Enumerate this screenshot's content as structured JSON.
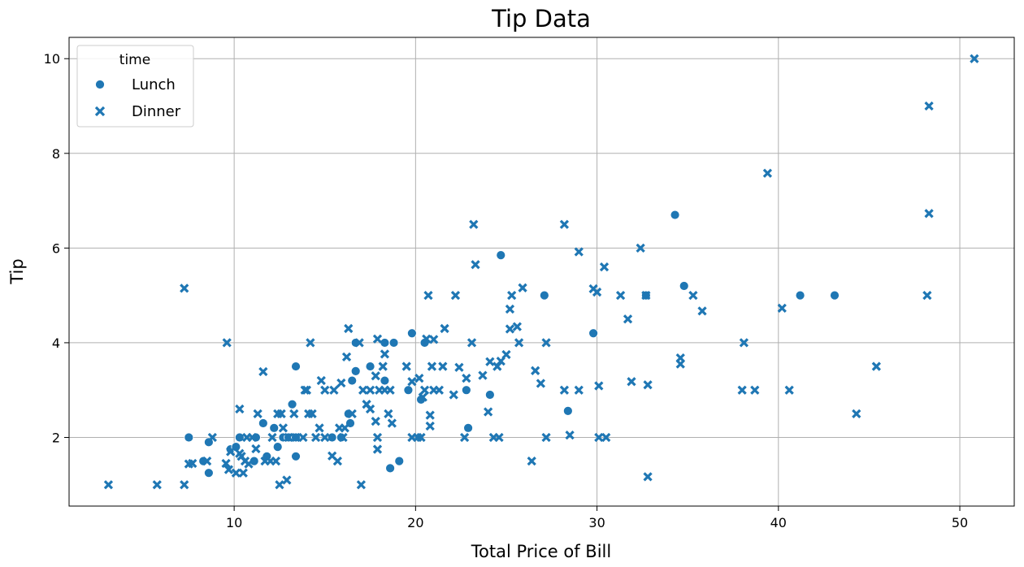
{
  "chart_data": {
    "type": "scatter",
    "title": "Tip Data",
    "xlabel": "Total Price of Bill",
    "ylabel": "Tip",
    "xlim": [
      0.9,
      53.0
    ],
    "ylim": [
      0.55,
      10.45
    ],
    "xticks": [
      10,
      20,
      30,
      40,
      50
    ],
    "yticks": [
      2,
      4,
      6,
      8,
      10
    ],
    "grid": true,
    "legend": {
      "title": "time",
      "placement": "top-left"
    },
    "color": "#1f77b4",
    "series": [
      {
        "name": "Lunch",
        "marker": "circle",
        "points": [
          [
            7.5,
            2.0
          ],
          [
            8.3,
            1.5
          ],
          [
            8.6,
            1.25
          ],
          [
            8.6,
            1.9
          ],
          [
            9.8,
            1.75
          ],
          [
            10.1,
            1.8
          ],
          [
            10.3,
            2.0
          ],
          [
            11.1,
            1.5
          ],
          [
            11.2,
            2.0
          ],
          [
            11.6,
            2.3
          ],
          [
            11.8,
            1.6
          ],
          [
            12.2,
            2.2
          ],
          [
            12.4,
            1.8
          ],
          [
            12.7,
            2.0
          ],
          [
            13.0,
            2.0
          ],
          [
            13.2,
            2.7
          ],
          [
            13.4,
            1.6
          ],
          [
            13.4,
            2.0
          ],
          [
            13.4,
            3.5
          ],
          [
            15.4,
            2.0
          ],
          [
            15.9,
            2.0
          ],
          [
            16.3,
            2.5
          ],
          [
            16.4,
            2.3
          ],
          [
            16.5,
            3.2
          ],
          [
            16.7,
            3.4
          ],
          [
            16.7,
            4.0
          ],
          [
            17.5,
            3.5
          ],
          [
            18.3,
            3.2
          ],
          [
            18.3,
            4.0
          ],
          [
            18.6,
            1.35
          ],
          [
            18.8,
            4.0
          ],
          [
            19.1,
            1.5
          ],
          [
            19.6,
            3.0
          ],
          [
            19.8,
            4.2
          ],
          [
            20.3,
            2.8
          ],
          [
            20.5,
            4.0
          ],
          [
            22.8,
            3.0
          ],
          [
            22.9,
            2.2
          ],
          [
            24.1,
            2.9
          ],
          [
            24.7,
            5.85
          ],
          [
            27.1,
            5.0
          ],
          [
            28.4,
            2.56
          ],
          [
            29.8,
            4.2
          ],
          [
            32.7,
            5.0
          ],
          [
            34.3,
            6.7
          ],
          [
            34.8,
            5.2
          ],
          [
            41.2,
            5.0
          ],
          [
            43.1,
            5.0
          ]
        ]
      },
      {
        "name": "Dinner",
        "marker": "x",
        "points": [
          [
            3.07,
            1.0
          ],
          [
            5.75,
            1.0
          ],
          [
            7.25,
            1.0
          ],
          [
            7.25,
            5.15
          ],
          [
            7.5,
            1.44
          ],
          [
            7.7,
            1.45
          ],
          [
            8.5,
            1.5
          ],
          [
            8.8,
            2.0
          ],
          [
            9.55,
            1.45
          ],
          [
            9.6,
            4.0
          ],
          [
            9.7,
            1.32
          ],
          [
            9.8,
            1.7
          ],
          [
            10.1,
            1.25
          ],
          [
            10.3,
            1.66
          ],
          [
            10.3,
            2.6
          ],
          [
            10.4,
            1.6
          ],
          [
            10.5,
            1.25
          ],
          [
            10.6,
            1.5
          ],
          [
            10.7,
            2.0
          ],
          [
            10.8,
            1.44
          ],
          [
            11.0,
            2.0
          ],
          [
            11.2,
            1.76
          ],
          [
            11.3,
            2.5
          ],
          [
            11.6,
            3.39
          ],
          [
            11.7,
            1.5
          ],
          [
            12.0,
            1.5
          ],
          [
            12.1,
            2.0
          ],
          [
            12.3,
            1.5
          ],
          [
            12.4,
            2.5
          ],
          [
            12.5,
            1.0
          ],
          [
            12.6,
            2.5
          ],
          [
            12.7,
            2.2
          ],
          [
            12.9,
            1.1
          ],
          [
            13.0,
            2.0
          ],
          [
            13.3,
            2.5
          ],
          [
            13.4,
            2.0
          ],
          [
            13.8,
            2.0
          ],
          [
            13.9,
            3.0
          ],
          [
            14.0,
            3.0
          ],
          [
            14.1,
            2.5
          ],
          [
            14.2,
            4.0
          ],
          [
            14.3,
            2.5
          ],
          [
            14.5,
            2.0
          ],
          [
            14.7,
            2.2
          ],
          [
            14.8,
            3.2
          ],
          [
            15.0,
            2.0
          ],
          [
            15.0,
            3.0
          ],
          [
            15.4,
            1.61
          ],
          [
            15.5,
            3.0
          ],
          [
            15.7,
            1.5
          ],
          [
            15.8,
            2.2
          ],
          [
            15.9,
            3.15
          ],
          [
            16.0,
            2.0
          ],
          [
            16.1,
            2.2
          ],
          [
            16.2,
            3.7
          ],
          [
            16.3,
            4.3
          ],
          [
            16.5,
            2.5
          ],
          [
            16.9,
            4.0
          ],
          [
            17.0,
            1.0
          ],
          [
            17.1,
            3.0
          ],
          [
            17.3,
            2.7
          ],
          [
            17.5,
            3.0
          ],
          [
            17.5,
            2.6
          ],
          [
            17.8,
            2.34
          ],
          [
            17.8,
            3.3
          ],
          [
            17.9,
            1.75
          ],
          [
            17.9,
            2.0
          ],
          [
            17.9,
            4.08
          ],
          [
            18.0,
            3.0
          ],
          [
            18.2,
            3.5
          ],
          [
            18.3,
            3.0
          ],
          [
            18.3,
            3.76
          ],
          [
            18.5,
            2.5
          ],
          [
            18.6,
            3.0
          ],
          [
            18.7,
            2.3
          ],
          [
            19.5,
            3.5
          ],
          [
            19.8,
            2.0
          ],
          [
            19.8,
            3.18
          ],
          [
            20.1,
            2.0
          ],
          [
            20.2,
            3.25
          ],
          [
            20.3,
            2.0
          ],
          [
            20.4,
            2.85
          ],
          [
            20.5,
            3.0
          ],
          [
            20.6,
            4.08
          ],
          [
            20.7,
            5.0
          ],
          [
            20.8,
            2.47
          ],
          [
            20.8,
            2.24
          ],
          [
            20.9,
            3.5
          ],
          [
            21.0,
            4.07
          ],
          [
            21.0,
            3.0
          ],
          [
            21.3,
            3.0
          ],
          [
            21.5,
            3.5
          ],
          [
            21.6,
            4.3
          ],
          [
            22.1,
            2.9
          ],
          [
            22.2,
            5.0
          ],
          [
            22.4,
            3.48
          ],
          [
            22.7,
            2.0
          ],
          [
            22.8,
            3.25
          ],
          [
            23.1,
            4.0
          ],
          [
            23.2,
            6.5
          ],
          [
            23.3,
            5.65
          ],
          [
            23.7,
            3.31
          ],
          [
            24.0,
            2.54
          ],
          [
            24.1,
            3.6
          ],
          [
            24.3,
            2.0
          ],
          [
            24.5,
            3.5
          ],
          [
            24.6,
            2.0
          ],
          [
            24.7,
            3.61
          ],
          [
            25.0,
            3.75
          ],
          [
            25.2,
            4.71
          ],
          [
            25.2,
            4.29
          ],
          [
            25.3,
            5.0
          ],
          [
            25.6,
            4.34
          ],
          [
            25.7,
            4.0
          ],
          [
            25.9,
            5.16
          ],
          [
            26.4,
            1.5
          ],
          [
            26.6,
            3.41
          ],
          [
            26.9,
            3.14
          ],
          [
            27.2,
            4.0
          ],
          [
            27.2,
            2.0
          ],
          [
            28.2,
            6.5
          ],
          [
            28.2,
            3.0
          ],
          [
            28.5,
            2.05
          ],
          [
            29.0,
            5.92
          ],
          [
            29.0,
            3.0
          ],
          [
            29.8,
            5.14
          ],
          [
            30.0,
            5.07
          ],
          [
            30.1,
            2.0
          ],
          [
            30.1,
            3.09
          ],
          [
            30.4,
            5.6
          ],
          [
            30.5,
            2.0
          ],
          [
            31.3,
            5.0
          ],
          [
            31.7,
            4.5
          ],
          [
            31.9,
            3.18
          ],
          [
            32.4,
            6.0
          ],
          [
            32.7,
            5.0
          ],
          [
            32.8,
            1.17
          ],
          [
            32.8,
            3.11
          ],
          [
            34.6,
            3.55
          ],
          [
            34.6,
            3.68
          ],
          [
            35.3,
            5.0
          ],
          [
            35.8,
            4.67
          ],
          [
            38.0,
            3.0
          ],
          [
            38.1,
            4.0
          ],
          [
            38.7,
            3.0
          ],
          [
            39.4,
            7.58
          ],
          [
            40.2,
            4.73
          ],
          [
            40.6,
            3.0
          ],
          [
            44.3,
            2.5
          ],
          [
            45.4,
            3.5
          ],
          [
            48.2,
            5.0
          ],
          [
            48.3,
            6.73
          ],
          [
            48.3,
            9.0
          ],
          [
            50.8,
            10.0
          ]
        ]
      }
    ]
  }
}
